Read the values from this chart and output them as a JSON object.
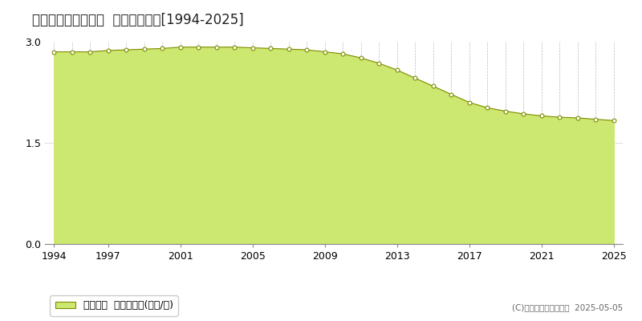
{
  "title": "東田川郡三川町青山  公示地価推移[1994-2025]",
  "years": [
    1994,
    1995,
    1996,
    1997,
    1998,
    1999,
    2000,
    2001,
    2002,
    2003,
    2004,
    2005,
    2006,
    2007,
    2008,
    2009,
    2010,
    2011,
    2012,
    2013,
    2014,
    2015,
    2016,
    2017,
    2018,
    2019,
    2020,
    2021,
    2022,
    2023,
    2024,
    2025
  ],
  "values": [
    2.85,
    2.85,
    2.85,
    2.87,
    2.88,
    2.89,
    2.9,
    2.92,
    2.92,
    2.92,
    2.92,
    2.91,
    2.9,
    2.89,
    2.88,
    2.85,
    2.82,
    2.76,
    2.68,
    2.58,
    2.46,
    2.34,
    2.22,
    2.1,
    2.02,
    1.97,
    1.93,
    1.9,
    1.88,
    1.87,
    1.85,
    1.83
  ],
  "line_color": "#7f8c00",
  "fill_color": "#cde870",
  "fill_alpha": 1.0,
  "marker_color": "#ffffff",
  "marker_edge_color": "#7f8c00",
  "marker_size": 3.5,
  "ylim": [
    0,
    3.0
  ],
  "yticks": [
    0,
    1.5,
    3.0
  ],
  "xticks": [
    1994,
    1997,
    2001,
    2005,
    2009,
    2013,
    2017,
    2021,
    2025
  ],
  "all_years_grid": true,
  "grid_color": "#bbbbbb",
  "bg_color": "#ffffff",
  "plot_bg_color": "#ffffff",
  "legend_label": "公示地価  平均坪単価(万円/坪)",
  "legend_marker_color": "#cde870",
  "legend_marker_edge_color": "#7f8c00",
  "copyright_text": "(C)土地価格ドットコム  2025-05-05",
  "title_fontsize": 12,
  "axis_fontsize": 9,
  "legend_fontsize": 9
}
